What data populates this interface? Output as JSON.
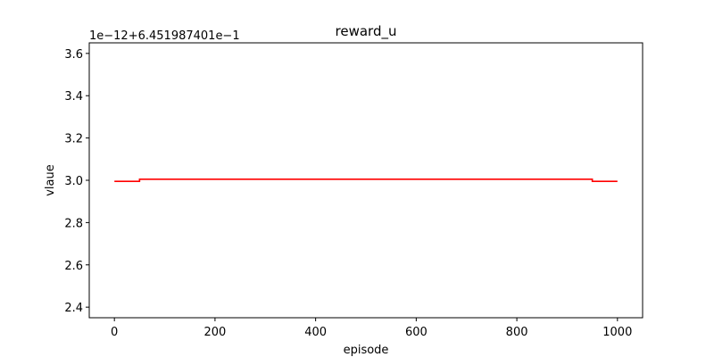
{
  "chart_data": {
    "type": "line",
    "title": "reward_u",
    "xlabel": "episode",
    "ylabel": "vlaue",
    "offset_text": "1e−12+6.451987401e−1",
    "xlim": [
      -50,
      1050
    ],
    "ylim": [
      2.35,
      3.65
    ],
    "x_ticks": [
      0,
      200,
      400,
      600,
      800,
      1000
    ],
    "x_tick_labels": [
      "0",
      "200",
      "400",
      "600",
      "800",
      "1000"
    ],
    "y_ticks": [
      2.4,
      2.6,
      2.8,
      3.0,
      3.2,
      3.4,
      3.6
    ],
    "y_tick_labels": [
      "2.4",
      "2.6",
      "2.8",
      "3.0",
      "3.2",
      "3.4",
      "3.6"
    ],
    "grid": false,
    "series": [
      {
        "color": "#ff0000",
        "x": [
          0,
          50,
          50,
          950,
          950,
          1000
        ],
        "y": [
          2.995,
          2.995,
          3.005,
          3.005,
          2.995,
          2.995
        ]
      }
    ]
  }
}
